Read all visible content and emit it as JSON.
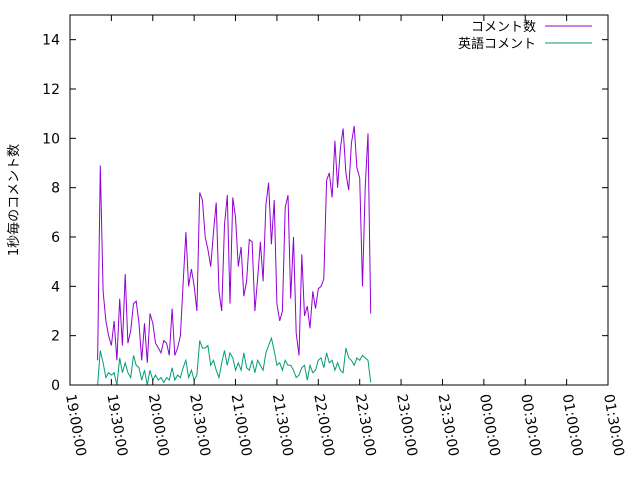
{
  "chart_data": {
    "type": "line",
    "ylabel": "1秒毎のコメント数",
    "ylim": [
      0,
      15
    ],
    "yticks": [
      0,
      2,
      4,
      6,
      8,
      10,
      12,
      14
    ],
    "yticklabels": [
      "0",
      "2",
      "4",
      "6",
      "8",
      "10",
      "12",
      "14"
    ],
    "xlim": [
      "19:00:00",
      "01:30:00"
    ],
    "xticklabels": [
      "19:00:00",
      "19:30:00",
      "20:00:00",
      "20:30:00",
      "21:00:00",
      "21:30:00",
      "22:00:00",
      "22:30:00",
      "23:00:00",
      "23:30:00",
      "00:00:00",
      "00:30:00",
      "01:00:00",
      "01:30:00"
    ],
    "legend_position": "top-right",
    "grid": false,
    "series": [
      {
        "name": "コメント数",
        "color": "#9400d3",
        "points": [
          [
            "19:20:00",
            1.0
          ],
          [
            "19:22:00",
            8.9
          ],
          [
            "19:24:00",
            3.8
          ],
          [
            "19:26:00",
            2.6
          ],
          [
            "19:28:00",
            2.0
          ],
          [
            "19:30:00",
            1.6
          ],
          [
            "19:32:00",
            2.6
          ],
          [
            "19:34:00",
            1.0
          ],
          [
            "19:36:00",
            3.5
          ],
          [
            "19:38:00",
            1.6
          ],
          [
            "19:40:00",
            4.5
          ],
          [
            "19:42:00",
            1.7
          ],
          [
            "19:44:00",
            2.2
          ],
          [
            "19:46:00",
            3.3
          ],
          [
            "19:48:00",
            3.4
          ],
          [
            "19:50:00",
            2.5
          ],
          [
            "19:52:00",
            1.0
          ],
          [
            "19:54:00",
            2.5
          ],
          [
            "19:56:00",
            0.9
          ],
          [
            "19:58:00",
            2.9
          ],
          [
            "20:00:00",
            2.5
          ],
          [
            "20:02:00",
            1.7
          ],
          [
            "20:04:00",
            1.5
          ],
          [
            "20:06:00",
            1.3
          ],
          [
            "20:08:00",
            1.8
          ],
          [
            "20:10:00",
            1.7
          ],
          [
            "20:12:00",
            1.2
          ],
          [
            "20:14:00",
            3.1
          ],
          [
            "20:16:00",
            1.2
          ],
          [
            "20:18:00",
            1.5
          ],
          [
            "20:20:00",
            2.0
          ],
          [
            "20:22:00",
            4.1
          ],
          [
            "20:24:00",
            6.2
          ],
          [
            "20:26:00",
            4.0
          ],
          [
            "20:28:00",
            4.7
          ],
          [
            "20:30:00",
            4.0
          ],
          [
            "20:32:00",
            3.0
          ],
          [
            "20:34:00",
            7.8
          ],
          [
            "20:36:00",
            7.5
          ],
          [
            "20:38:00",
            6.0
          ],
          [
            "20:40:00",
            5.5
          ],
          [
            "20:42:00",
            4.8
          ],
          [
            "20:44:00",
            6.2
          ],
          [
            "20:46:00",
            7.4
          ],
          [
            "20:48:00",
            3.8
          ],
          [
            "20:50:00",
            3.0
          ],
          [
            "20:52:00",
            6.5
          ],
          [
            "20:54:00",
            7.7
          ],
          [
            "20:56:00",
            3.3
          ],
          [
            "20:58:00",
            7.6
          ],
          [
            "21:00:00",
            6.8
          ],
          [
            "21:02:00",
            4.8
          ],
          [
            "21:04:00",
            5.6
          ],
          [
            "21:06:00",
            3.6
          ],
          [
            "21:08:00",
            4.2
          ],
          [
            "21:10:00",
            5.9
          ],
          [
            "21:12:00",
            5.8
          ],
          [
            "21:14:00",
            3.0
          ],
          [
            "21:16:00",
            4.3
          ],
          [
            "21:18:00",
            5.8
          ],
          [
            "21:20:00",
            4.2
          ],
          [
            "21:22:00",
            7.3
          ],
          [
            "21:24:00",
            8.2
          ],
          [
            "21:26:00",
            5.7
          ],
          [
            "21:28:00",
            7.5
          ],
          [
            "21:30:00",
            3.3
          ],
          [
            "21:32:00",
            2.6
          ],
          [
            "21:34:00",
            3.0
          ],
          [
            "21:36:00",
            7.2
          ],
          [
            "21:38:00",
            7.7
          ],
          [
            "21:40:00",
            3.5
          ],
          [
            "21:42:00",
            6.0
          ],
          [
            "21:44:00",
            2.1
          ],
          [
            "21:46:00",
            1.2
          ],
          [
            "21:48:00",
            5.3
          ],
          [
            "21:50:00",
            2.8
          ],
          [
            "21:52:00",
            3.2
          ],
          [
            "21:54:00",
            2.3
          ],
          [
            "21:56:00",
            3.8
          ],
          [
            "21:58:00",
            3.1
          ],
          [
            "22:00:00",
            3.9
          ],
          [
            "22:02:00",
            4.0
          ],
          [
            "22:04:00",
            4.3
          ],
          [
            "22:06:00",
            8.3
          ],
          [
            "22:08:00",
            8.6
          ],
          [
            "22:10:00",
            7.6
          ],
          [
            "22:12:00",
            9.9
          ],
          [
            "22:14:00",
            8.0
          ],
          [
            "22:16:00",
            9.6
          ],
          [
            "22:18:00",
            10.4
          ],
          [
            "22:20:00",
            8.6
          ],
          [
            "22:22:00",
            7.9
          ],
          [
            "22:24:00",
            9.8
          ],
          [
            "22:26:00",
            10.5
          ],
          [
            "22:28:00",
            8.8
          ],
          [
            "22:30:00",
            8.4
          ],
          [
            "22:32:00",
            4.0
          ],
          [
            "22:34:00",
            8.0
          ],
          [
            "22:36:00",
            10.2
          ],
          [
            "22:38:00",
            2.9
          ]
        ]
      },
      {
        "name": "英語コメント",
        "color": "#009e73",
        "points": [
          [
            "19:20:00",
            0.0
          ],
          [
            "19:22:00",
            1.4
          ],
          [
            "19:24:00",
            0.9
          ],
          [
            "19:26:00",
            0.3
          ],
          [
            "19:28:00",
            0.5
          ],
          [
            "19:30:00",
            0.4
          ],
          [
            "19:32:00",
            0.5
          ],
          [
            "19:34:00",
            0.0
          ],
          [
            "19:36:00",
            1.1
          ],
          [
            "19:38:00",
            0.5
          ],
          [
            "19:40:00",
            0.9
          ],
          [
            "19:42:00",
            0.5
          ],
          [
            "19:44:00",
            0.3
          ],
          [
            "19:46:00",
            1.2
          ],
          [
            "19:48:00",
            0.8
          ],
          [
            "19:50:00",
            0.7
          ],
          [
            "19:52:00",
            0.2
          ],
          [
            "19:54:00",
            0.6
          ],
          [
            "19:56:00",
            0.0
          ],
          [
            "19:58:00",
            0.6
          ],
          [
            "20:00:00",
            0.2
          ],
          [
            "20:02:00",
            0.4
          ],
          [
            "20:04:00",
            0.2
          ],
          [
            "20:06:00",
            0.3
          ],
          [
            "20:08:00",
            0.1
          ],
          [
            "20:10:00",
            0.3
          ],
          [
            "20:12:00",
            0.2
          ],
          [
            "20:14:00",
            0.7
          ],
          [
            "20:16:00",
            0.2
          ],
          [
            "20:18:00",
            0.4
          ],
          [
            "20:20:00",
            0.3
          ],
          [
            "20:22:00",
            0.7
          ],
          [
            "20:24:00",
            1.0
          ],
          [
            "20:26:00",
            0.3
          ],
          [
            "20:28:00",
            0.6
          ],
          [
            "20:30:00",
            0.2
          ],
          [
            "20:32:00",
            0.4
          ],
          [
            "20:34:00",
            1.8
          ],
          [
            "20:36:00",
            1.5
          ],
          [
            "20:38:00",
            1.5
          ],
          [
            "20:40:00",
            1.6
          ],
          [
            "20:42:00",
            0.8
          ],
          [
            "20:44:00",
            1.0
          ],
          [
            "20:46:00",
            0.6
          ],
          [
            "20:48:00",
            0.3
          ],
          [
            "20:50:00",
            0.9
          ],
          [
            "20:52:00",
            1.4
          ],
          [
            "20:54:00",
            0.8
          ],
          [
            "20:56:00",
            1.3
          ],
          [
            "20:58:00",
            1.1
          ],
          [
            "21:00:00",
            0.6
          ],
          [
            "21:02:00",
            0.9
          ],
          [
            "21:04:00",
            0.6
          ],
          [
            "21:06:00",
            1.3
          ],
          [
            "21:08:00",
            0.7
          ],
          [
            "21:10:00",
            0.6
          ],
          [
            "21:12:00",
            1.0
          ],
          [
            "21:14:00",
            0.5
          ],
          [
            "21:16:00",
            1.0
          ],
          [
            "21:18:00",
            0.8
          ],
          [
            "21:20:00",
            0.6
          ],
          [
            "21:22:00",
            1.3
          ],
          [
            "21:24:00",
            1.6
          ],
          [
            "21:26:00",
            1.9
          ],
          [
            "21:28:00",
            1.4
          ],
          [
            "21:30:00",
            0.8
          ],
          [
            "21:32:00",
            0.9
          ],
          [
            "21:34:00",
            0.6
          ],
          [
            "21:36:00",
            1.0
          ],
          [
            "21:38:00",
            0.8
          ],
          [
            "21:40:00",
            0.8
          ],
          [
            "21:42:00",
            0.6
          ],
          [
            "21:44:00",
            0.3
          ],
          [
            "21:46:00",
            0.4
          ],
          [
            "21:48:00",
            0.7
          ],
          [
            "21:50:00",
            0.8
          ],
          [
            "21:52:00",
            0.2
          ],
          [
            "21:54:00",
            0.8
          ],
          [
            "21:56:00",
            0.5
          ],
          [
            "21:58:00",
            0.6
          ],
          [
            "22:00:00",
            1.0
          ],
          [
            "22:02:00",
            1.1
          ],
          [
            "22:04:00",
            0.7
          ],
          [
            "22:06:00",
            1.3
          ],
          [
            "22:08:00",
            0.9
          ],
          [
            "22:10:00",
            1.0
          ],
          [
            "22:12:00",
            0.6
          ],
          [
            "22:14:00",
            0.9
          ],
          [
            "22:16:00",
            0.6
          ],
          [
            "22:18:00",
            0.5
          ],
          [
            "22:20:00",
            1.5
          ],
          [
            "22:22:00",
            1.1
          ],
          [
            "22:24:00",
            1.0
          ],
          [
            "22:26:00",
            0.8
          ],
          [
            "22:28:00",
            1.1
          ],
          [
            "22:30:00",
            1.0
          ],
          [
            "22:32:00",
            1.2
          ],
          [
            "22:34:00",
            1.1
          ],
          [
            "22:36:00",
            1.0
          ],
          [
            "22:38:00",
            0.1
          ]
        ]
      }
    ]
  }
}
